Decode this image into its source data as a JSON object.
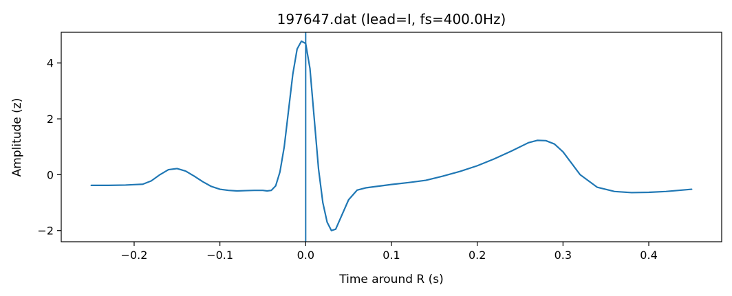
{
  "chart_data": {
    "type": "line",
    "title": "197647.dat (lead=I, fs=400.0Hz)",
    "xlabel": "Time around R (s)",
    "ylabel": "Amplitude (z)",
    "xlim": [
      -0.285,
      0.485
    ],
    "ylim": [
      -2.4,
      5.1
    ],
    "xticks": [
      -0.2,
      -0.1,
      0.0,
      0.1,
      0.2,
      0.3,
      0.4
    ],
    "xtick_labels": [
      "−0.2",
      "−0.1",
      "0.0",
      "0.1",
      "0.2",
      "0.3",
      "0.4"
    ],
    "yticks": [
      -2,
      0,
      2,
      4
    ],
    "ytick_labels": [
      "−2",
      "0",
      "2",
      "4"
    ],
    "grid": false,
    "line_color": "#1f77b4",
    "vline": {
      "x": 0.0,
      "color": "#1f77b4"
    },
    "series": [
      {
        "x": [
          -0.25,
          -0.23,
          -0.21,
          -0.19,
          -0.18,
          -0.17,
          -0.16,
          -0.15,
          -0.14,
          -0.13,
          -0.12,
          -0.11,
          -0.1,
          -0.09,
          -0.08,
          -0.07,
          -0.06,
          -0.05,
          -0.045,
          -0.04,
          -0.035,
          -0.03,
          -0.025,
          -0.02,
          -0.015,
          -0.01,
          -0.005,
          0.0,
          0.005,
          0.01,
          0.015,
          0.02,
          0.025,
          0.03,
          0.035,
          0.04,
          0.05,
          0.06,
          0.07,
          0.08,
          0.09,
          0.1,
          0.12,
          0.14,
          0.16,
          0.18,
          0.2,
          0.22,
          0.24,
          0.26,
          0.27,
          0.28,
          0.29,
          0.3,
          0.32,
          0.34,
          0.36,
          0.38,
          0.4,
          0.42,
          0.45
        ],
        "values": [
          -0.38,
          -0.38,
          -0.37,
          -0.34,
          -0.22,
          0.0,
          0.18,
          0.22,
          0.13,
          -0.05,
          -0.25,
          -0.42,
          -0.52,
          -0.56,
          -0.58,
          -0.57,
          -0.56,
          -0.56,
          -0.58,
          -0.56,
          -0.4,
          0.1,
          1.0,
          2.3,
          3.6,
          4.5,
          4.78,
          4.7,
          3.8,
          2.0,
          0.2,
          -1.0,
          -1.7,
          -2.0,
          -1.95,
          -1.6,
          -0.9,
          -0.55,
          -0.47,
          -0.43,
          -0.39,
          -0.35,
          -0.28,
          -0.2,
          -0.05,
          0.12,
          0.32,
          0.57,
          0.85,
          1.15,
          1.23,
          1.22,
          1.1,
          0.82,
          0.0,
          -0.45,
          -0.6,
          -0.64,
          -0.63,
          -0.6,
          -0.52
        ]
      }
    ]
  }
}
